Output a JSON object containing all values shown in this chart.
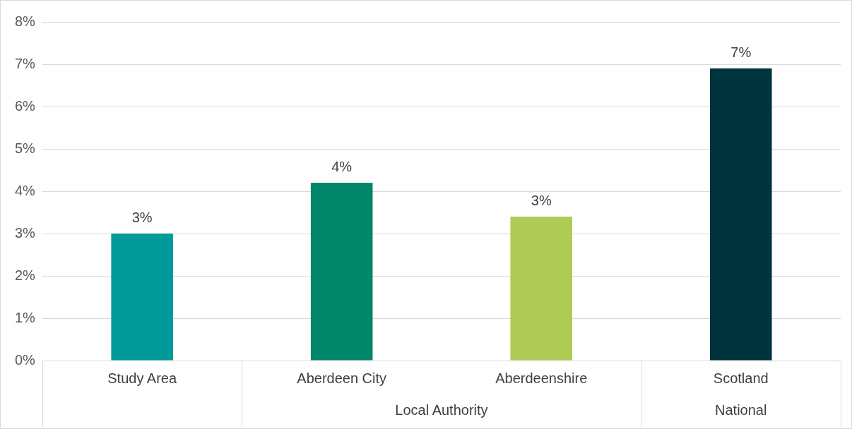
{
  "chart_data": {
    "type": "bar",
    "categories": [
      "Study Area",
      "Aberdeen City",
      "Aberdeenshire",
      "Scotland"
    ],
    "values": [
      3.0,
      4.2,
      3.4,
      6.9
    ],
    "colors": [
      "#009a9a",
      "#00876a",
      "#afca55",
      "#00343d"
    ],
    "value_labels": [
      "3%",
      "4%",
      "3%",
      "7%"
    ],
    "ylim": [
      0,
      8
    ],
    "yticks": [
      {
        "value": 0,
        "label": "0%"
      },
      {
        "value": 1,
        "label": "1%"
      },
      {
        "value": 2,
        "label": "2%"
      },
      {
        "value": 3,
        "label": "3%"
      },
      {
        "value": 4,
        "label": "4%"
      },
      {
        "value": 5,
        "label": "5%"
      },
      {
        "value": 6,
        "label": "6%"
      },
      {
        "value": 7,
        "label": "7%"
      },
      {
        "value": 8,
        "label": "8%"
      }
    ],
    "grid": "y",
    "annotations": [
      "Local Authority",
      "National"
    ]
  }
}
